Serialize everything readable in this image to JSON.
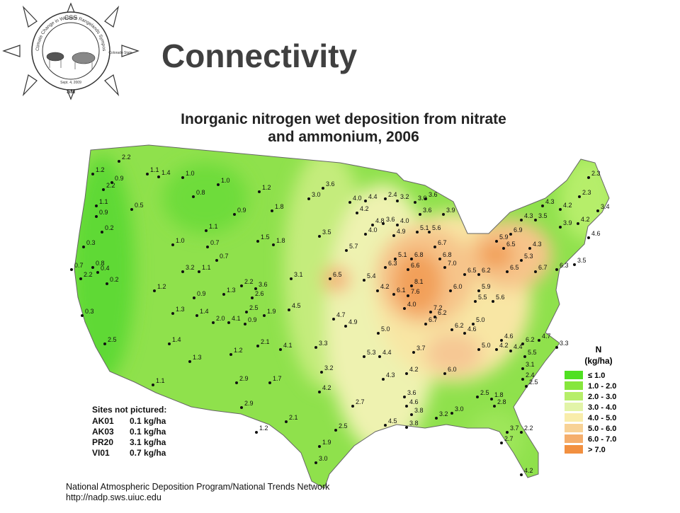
{
  "slide": {
    "title": "Connectivity",
    "logo": {
      "ring": "Climate Change in Western Rangelands Symposium",
      "left": "Sept. 4, 2009",
      "right": "Colorado State",
      "top": "CSS",
      "bottom": "SM"
    },
    "map": {
      "title_lines": [
        "Inorganic nitrogen wet deposition from nitrate",
        "and ammonium, 2006"
      ],
      "legend": {
        "title": "N",
        "unit": "(kg/ha)",
        "items": [
          {
            "label": "≤ 1.0",
            "color": "#4fe021"
          },
          {
            "label": "1.0 - 2.0",
            "color": "#86e63c"
          },
          {
            "label": "2.0 - 3.0",
            "color": "#b6ee6a"
          },
          {
            "label": "3.0 - 4.0",
            "color": "#e2f4a8"
          },
          {
            "label": "4.0 - 5.0",
            "color": "#f9edab"
          },
          {
            "label": "5.0 - 6.0",
            "color": "#f8d296"
          },
          {
            "label": "6.0 - 7.0",
            "color": "#f5ae6c"
          },
          {
            "label": "> 7.0",
            "color": "#f29040"
          }
        ]
      },
      "sites_not_pictured": {
        "header": "Sites not pictured:",
        "rows": [
          [
            "AK01",
            "0.1 kg/ha"
          ],
          [
            "AK03",
            "0.1 kg/ha"
          ],
          [
            "PR20",
            "3.1 kg/ha"
          ],
          [
            "VI01",
            "0.7 kg/ha"
          ]
        ]
      },
      "stations": [
        "2.2",
        "1.2",
        "0.9",
        "2.2",
        "1.1",
        "0.9",
        "0.2",
        "0.5",
        "1.1",
        "1.4",
        "1.0",
        "1.0",
        "0.8",
        "0.9",
        "1.2",
        "1.8",
        "1.1",
        "1.0",
        "0.7",
        "0.7",
        "0.3",
        "0.7",
        "2.2",
        "0.8",
        "0.4",
        "0.2",
        "0.3",
        "3.2",
        "1.1",
        "1.5",
        "1.8",
        "3.0",
        "3.6",
        "3.5",
        "3.1",
        "6.5",
        "5.4",
        "5.7",
        "1.2",
        "0.9",
        "1.3",
        "2.2",
        "3.6",
        "2.6",
        "1.3",
        "1.4",
        "2.5",
        "1.9",
        "4.5",
        "2.0",
        "4.1",
        "0.9",
        "4.7",
        "4.9",
        "2.5",
        "1.4",
        "1.3",
        "1.2",
        "2.1",
        "4.1",
        "3.3",
        "3.2",
        "4.2",
        "1.7",
        "2.9",
        "2.9",
        "1.1",
        "2.1",
        "2.7",
        "2.5",
        "1.2",
        "1.9",
        "3.0",
        "5.3",
        "4.4",
        "4.2",
        "6.1",
        "7.6",
        "8.1",
        "6.3",
        "5.1",
        "6.8",
        "6.6",
        "6.8",
        "7.0",
        "6.5",
        "6.2",
        "6.0",
        "5.9",
        "5.6",
        "5.5",
        "4.0",
        "7.2",
        "6.2",
        "6.7",
        "6.2",
        "5.0",
        "5.0",
        "3.7",
        "4.6",
        "5.0",
        "4.2",
        "6.0",
        "4.3",
        "4.2",
        "3.6",
        "4.6",
        "3.8",
        "4.5",
        "3.8",
        "3.2",
        "3.0",
        "2.5",
        "1.8",
        "2.8",
        "3.7",
        "2.7",
        "2.2",
        "4.2",
        "3.1",
        "2.4",
        "2.5",
        "4.6",
        "6.2",
        "4.7",
        "3.3",
        "4.4",
        "5.5",
        "2.3",
        "2.3",
        "3.4",
        "4.3",
        "4.2",
        "3.5",
        "4.3",
        "5.9",
        "6.5",
        "6.9",
        "4.3",
        "5.3",
        "6.5",
        "6.7",
        "6.3",
        "3.5",
        "4.6",
        "4.2",
        "3.9",
        "4.0",
        "4.2",
        "4.4",
        "2.4",
        "3.2",
        "3.0",
        "3.6",
        "3.6",
        "3.9",
        "3.6",
        "4.0",
        "4.8",
        "4.9",
        "5.1",
        "5.6",
        "6.7",
        "4.0"
      ],
      "footer_lines": [
        "National Atmospheric Deposition Program/National Trends Network",
        "http://nadp.sws.uiuc.edu"
      ]
    }
  }
}
